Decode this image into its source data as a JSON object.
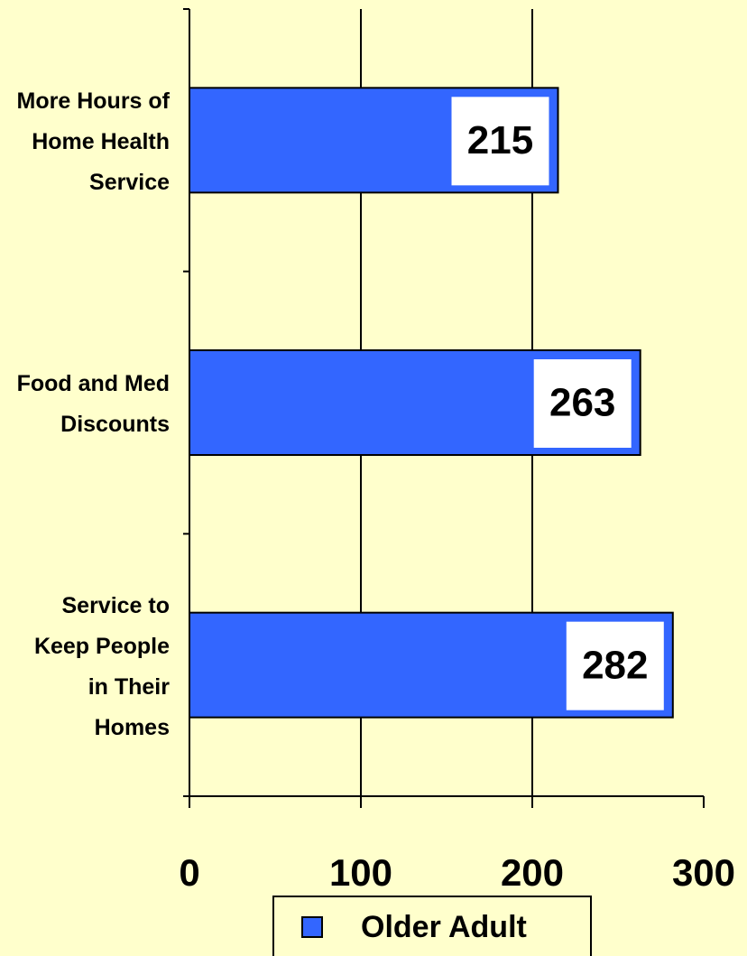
{
  "chart_data": {
    "type": "bar",
    "orientation": "horizontal",
    "categories": [
      "More Hours of Home Health Service",
      "Food and Med Discounts",
      "Service to Keep People in Their Homes"
    ],
    "series": [
      {
        "name": "Older Adult",
        "color": "#3366ff",
        "values": [
          215,
          263,
          282
        ]
      }
    ],
    "xlim": [
      0,
      300
    ],
    "xticks": [
      0,
      100,
      200,
      300
    ],
    "grid": true,
    "legend": "bottom"
  }
}
